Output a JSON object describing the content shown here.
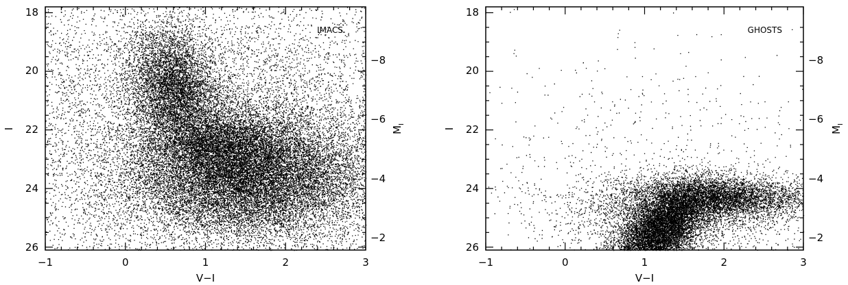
{
  "figure": {
    "background": "#ffffff",
    "ink": "#000000"
  },
  "chart_data": [
    {
      "type": "scatter",
      "label": "IMACS",
      "xlabel": "V−I",
      "ylabel": "I",
      "y2label": "M",
      "y2label_sub": "I",
      "xlim": [
        -1,
        3
      ],
      "ylim": [
        26.1,
        17.8
      ],
      "y2_ticks": [
        "−8",
        "−6",
        "−4",
        "−2"
      ],
      "y2_tick_values": [
        -8,
        -6,
        -4,
        -2
      ],
      "y2_offset": 28.0,
      "x_ticks": [
        "−1",
        "0",
        "1",
        "2",
        "3"
      ],
      "x_tick_values": [
        -1,
        0,
        1,
        2,
        3
      ],
      "y_ticks": [
        "18",
        "20",
        "22",
        "24",
        "26"
      ],
      "y_tick_values": [
        18,
        20,
        22,
        24,
        26
      ],
      "series": [
        {
          "points_estimated": 38000,
          "components": [
            {
              "weight": 0.4,
              "mean_x": 1.55,
              "mean_y": 23.6,
              "sd_x": 0.75,
              "sd_y": 1.05,
              "rho": 0.0
            },
            {
              "weight": 0.14,
              "mean_x": 0.6,
              "mean_y": 20.5,
              "sd_x": 0.28,
              "sd_y": 1.0,
              "rho": 0.2
            },
            {
              "weight": 0.1,
              "mean_x": 1.15,
              "mean_y": 22.4,
              "sd_x": 0.45,
              "sd_y": 0.7,
              "rho": 0.0
            },
            {
              "weight": 0.36,
              "mean_x": 1.0,
              "mean_y": 22.0,
              "sd_x": 2.0,
              "sd_y": 3.0,
              "rho": 0.0
            }
          ]
        }
      ]
    },
    {
      "type": "scatter",
      "label": "GHOSTS",
      "xlabel": "V−I",
      "ylabel": "I",
      "y2label": "M",
      "y2label_sub": "I",
      "xlim": [
        -1,
        3
      ],
      "ylim": [
        26.1,
        17.8
      ],
      "y2_ticks": [
        "−8",
        "−6",
        "−4",
        "−2"
      ],
      "y2_tick_values": [
        -8,
        -6,
        -4,
        -2
      ],
      "y2_offset": 28.0,
      "x_ticks": [
        "−1",
        "0",
        "1",
        "2",
        "3"
      ],
      "x_tick_values": [
        -1,
        0,
        1,
        2,
        3
      ],
      "y_ticks": [
        "18",
        "20",
        "22",
        "24",
        "26"
      ],
      "y_tick_values": [
        18,
        20,
        22,
        24,
        26
      ],
      "series": [
        {
          "points_estimated": 16000,
          "components": [
            {
              "weight": 0.5,
              "mean_x": 1.2,
              "mean_y": 25.4,
              "sd_x": 0.28,
              "sd_y": 0.7,
              "rho": -0.5
            },
            {
              "weight": 0.3,
              "mean_x": 1.9,
              "mean_y": 24.3,
              "sd_x": 0.55,
              "sd_y": 0.35,
              "rho": 0.0
            },
            {
              "weight": 0.16,
              "mean_x": 1.4,
              "mean_y": 24.8,
              "sd_x": 0.8,
              "sd_y": 0.7,
              "rho": 0.0
            },
            {
              "weight": 0.04,
              "mean_x": 1.0,
              "mean_y": 23.0,
              "sd_x": 1.3,
              "sd_y": 2.0,
              "rho": 0.0
            }
          ]
        }
      ]
    }
  ]
}
